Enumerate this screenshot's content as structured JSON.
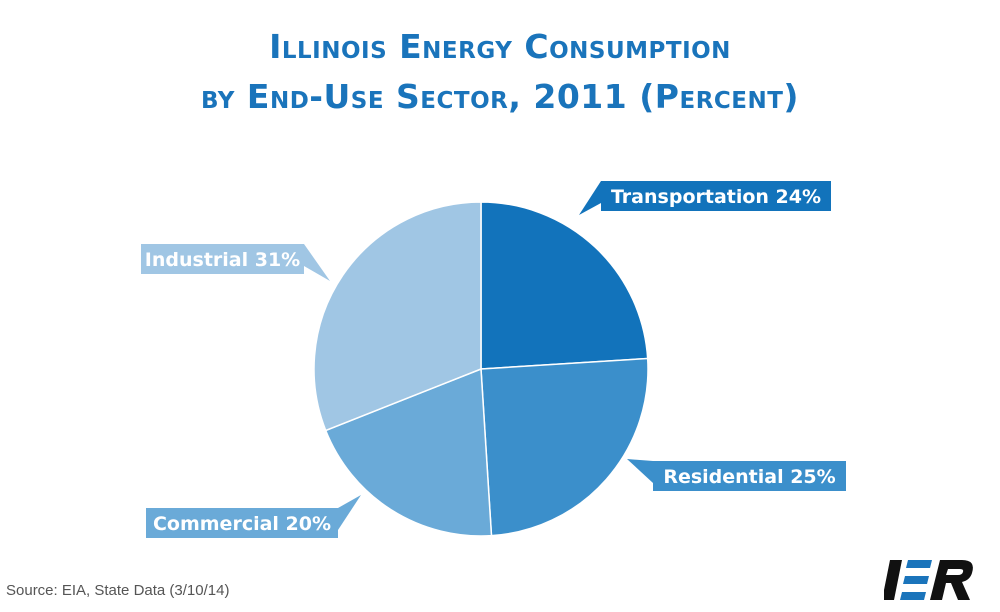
{
  "title_line1": "Illinois Energy Consumption",
  "title_line2": "by End-Use Sector, 2011 (Percent)",
  "source": "Source: EIA, State Data (3/10/14)",
  "logo_text": "IER",
  "chart_data": {
    "type": "pie",
    "categories": [
      "Transportation",
      "Residential",
      "Commercial",
      "Industrial"
    ],
    "values": [
      24,
      25,
      20,
      31
    ],
    "labels": [
      "Transportation 24%",
      "Residential 25%",
      "Commercial 20%",
      "Industrial 31%"
    ],
    "colors": [
      "#1273bb",
      "#3b8fcb",
      "#6aaad8",
      "#a0c6e4"
    ],
    "start_angle_deg": 0,
    "direction": "clockwise",
    "unit": "%"
  }
}
